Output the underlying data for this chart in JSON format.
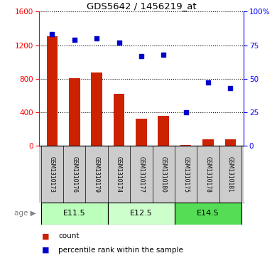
{
  "title": "GDS5642 / 1456219_at",
  "samples": [
    "GSM1310173",
    "GSM1310176",
    "GSM1310179",
    "GSM1310174",
    "GSM1310177",
    "GSM1310180",
    "GSM1310175",
    "GSM1310178",
    "GSM1310181"
  ],
  "counts": [
    1310,
    810,
    870,
    620,
    320,
    360,
    8,
    75,
    75
  ],
  "percentiles": [
    83,
    79,
    80,
    77,
    67,
    68,
    25,
    47,
    43
  ],
  "age_groups": [
    {
      "label": "E11.5",
      "indices": [
        0,
        1,
        2
      ],
      "color": "#bbffbb"
    },
    {
      "label": "E12.5",
      "indices": [
        3,
        4,
        5
      ],
      "color": "#ccffcc"
    },
    {
      "label": "E14.5",
      "indices": [
        6,
        7,
        8
      ],
      "color": "#55dd55"
    }
  ],
  "ylim_left": [
    0,
    1600
  ],
  "ylim_right": [
    0,
    100
  ],
  "yticks_left": [
    0,
    400,
    800,
    1200,
    1600
  ],
  "yticks_right": [
    0,
    25,
    50,
    75,
    100
  ],
  "bar_color": "#cc2200",
  "dot_color": "#0000cc",
  "bar_width": 0.5,
  "sample_bg_color": "#cccccc",
  "age_label": "age"
}
